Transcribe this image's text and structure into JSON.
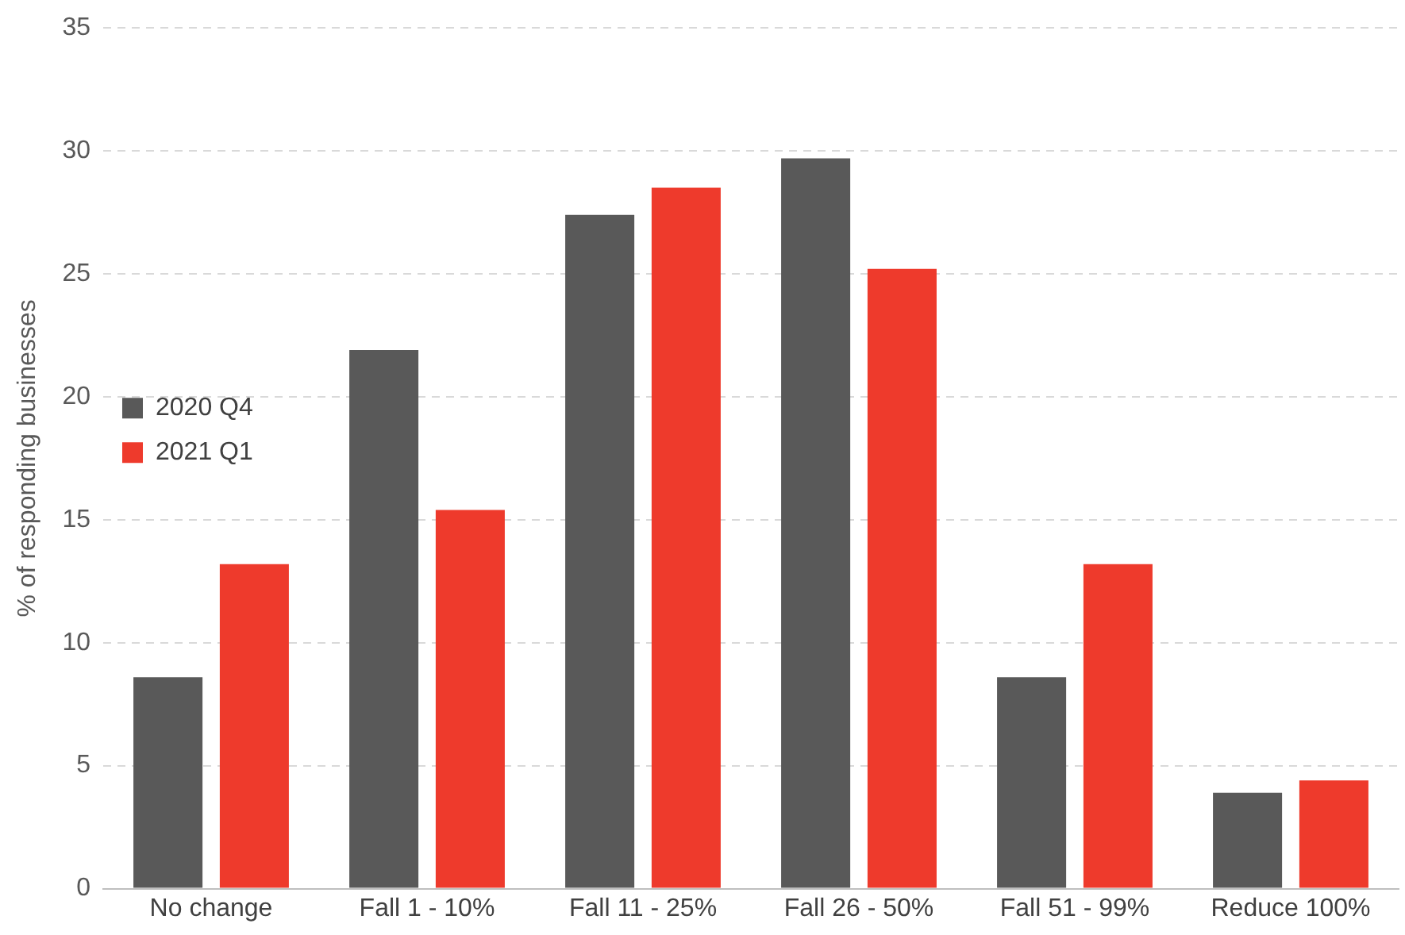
{
  "chart_data": {
    "type": "bar",
    "ylabel": "% of responding businesses",
    "categories": [
      "No change",
      "Fall 1 - 10%",
      "Fall 11 - 25%",
      "Fall 26 - 50%",
      "Fall 51 - 99%",
      "Reduce 100%"
    ],
    "series": [
      {
        "name": "2020 Q4",
        "color": "#595959",
        "values": [
          8.6,
          21.9,
          27.4,
          29.7,
          8.6,
          3.9
        ]
      },
      {
        "name": "2021 Q1",
        "color": "#ee3a2c",
        "values": [
          13.2,
          15.4,
          28.5,
          25.2,
          13.2,
          4.4
        ]
      }
    ],
    "ylim": [
      0,
      35
    ],
    "yticks": [
      0,
      5,
      10,
      15,
      20,
      25,
      30,
      35
    ],
    "grid": "y",
    "legend": "top"
  }
}
